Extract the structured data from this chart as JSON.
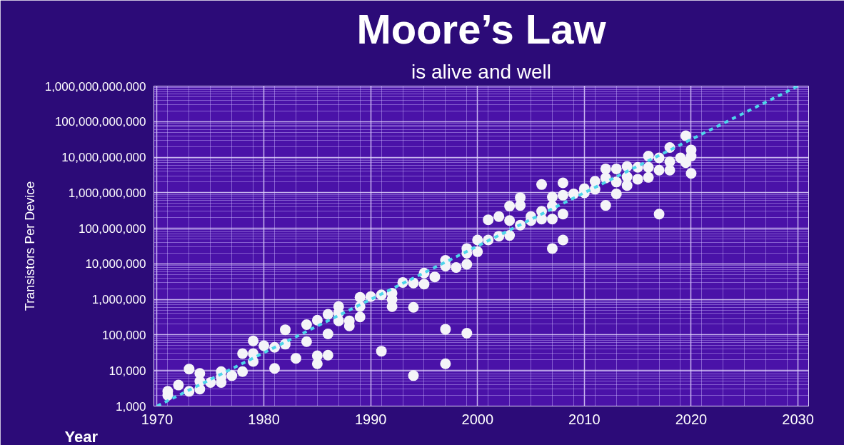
{
  "chart_data": {
    "type": "scatter",
    "title": "Moore’s Law",
    "subtitle": "is alive and well",
    "xlabel": "Year",
    "ylabel": "Transistors Per Device",
    "log": "y",
    "grid": true,
    "marker": "circle",
    "xlim": [
      1969.7,
      2031
    ],
    "ylim": [
      1000,
      1000000000000
    ],
    "xticks": [
      1970,
      1980,
      1990,
      2000,
      2010,
      2020,
      2030
    ],
    "yticks": [
      {
        "value": 1000,
        "label": "1,000"
      },
      {
        "value": 10000,
        "label": "10,000"
      },
      {
        "value": 100000,
        "label": "100,000"
      },
      {
        "value": 1000000,
        "label": "1,000,000"
      },
      {
        "value": 10000000,
        "label": "10,000,000"
      },
      {
        "value": 100000000,
        "label": "100,000,000"
      },
      {
        "value": 1000000000,
        "label": "1,000,000,000"
      },
      {
        "value": 10000000000,
        "label": "10,000,000,000"
      },
      {
        "value": 100000000000,
        "label": "100,000,000,000"
      },
      {
        "value": 1000000000000,
        "label": "1,000,000,000,000"
      }
    ],
    "series": [
      {
        "color": "#f4f4f8",
        "x": [
          1971,
          1971,
          1972,
          1973,
          1973,
          1974,
          1974,
          1974,
          1975,
          1976,
          1976,
          1976,
          1977,
          1978,
          1978,
          1979,
          1979,
          1979,
          1980,
          1981,
          1981,
          1982,
          1982,
          1983,
          1984,
          1984,
          1985,
          1985,
          1985,
          1986,
          1986,
          1986,
          1987,
          1987,
          1987,
          1988,
          1988,
          1989,
          1989,
          1989,
          1990,
          1991,
          1991,
          1992,
          1992,
          1992,
          1993,
          1994,
          1994,
          1994,
          1995,
          1995,
          1996,
          1997,
          1997,
          1997,
          1997,
          1998,
          1999,
          1999,
          1999,
          1999,
          2000,
          2000,
          2001,
          2001,
          2002,
          2002,
          2003,
          2003,
          2003,
          2004,
          2004,
          2004,
          2005,
          2005,
          2006,
          2006,
          2006,
          2007,
          2007,
          2007,
          2007,
          2008,
          2008,
          2008,
          2008,
          2009,
          2010,
          2010,
          2011,
          2011,
          2012,
          2012,
          2012,
          2013,
          2013,
          2013,
          2014,
          2014,
          2014,
          2015,
          2015,
          2016,
          2016,
          2016,
          2017,
          2017,
          2017,
          2018,
          2018,
          2018,
          2019,
          2019.5,
          2019.5,
          2020,
          2020,
          2020
        ],
        "values": [
          2600,
          2000,
          3900,
          11000,
          2600,
          8300,
          5000,
          3000,
          4600,
          9300,
          6500,
          4600,
          7200,
          30000,
          9300,
          68000,
          30000,
          18000,
          50000,
          45000,
          11500,
          140000,
          55000,
          22000,
          195000,
          65000,
          260000,
          26000,
          15500,
          380000,
          107000,
          27000,
          630000,
          420000,
          250000,
          250000,
          180000,
          1150000,
          630000,
          320000,
          1200000,
          1350000,
          35000,
          1500000,
          1000000,
          630000,
          3000000,
          2900000,
          600000,
          7200,
          5500000,
          2700000,
          4300000,
          12500000,
          8700000,
          145000,
          15500,
          7900000,
          27000000,
          20000000,
          9700000,
          112000,
          47000000,
          22000000,
          174000000,
          47000000,
          214000000,
          60000000,
          420000000,
          165000000,
          63000000,
          730000000,
          440000000,
          123000000,
          214000000,
          165000000,
          1700000000,
          300000000,
          182000000,
          760000000,
          420000000,
          182000000,
          27000000,
          1900000000,
          850000000,
          250000000,
          47000000,
          930000000,
          1300000000,
          1000000000,
          2100000000,
          1260000000,
          4700000000,
          2600000000,
          440000000,
          4700000000,
          2000000000,
          930000000,
          5500000000,
          2800000000,
          1600000000,
          5200000000,
          2400000000,
          10700000000,
          5200000000,
          2700000000,
          9600000000,
          4300000000,
          250000000,
          18700000000,
          7400000000,
          4300000000,
          9600000000,
          40000000000,
          7000000000,
          16000000000,
          10700000000,
          3500000000
        ]
      },
      {
        "type": "line",
        "color": "#4fd6ea",
        "line_style": "dashed",
        "marker": "none",
        "x": [
          1970,
          2030
        ],
        "values": [
          1000,
          1000000000000
        ]
      }
    ]
  }
}
